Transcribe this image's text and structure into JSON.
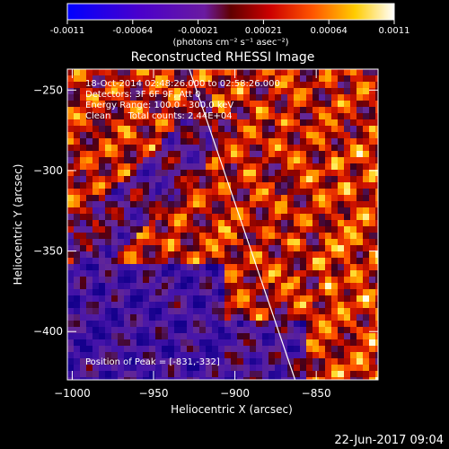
{
  "colorbar": {
    "ticks": [
      "-0.0011",
      "-0.00064",
      "-0.00021",
      "0.00021",
      "0.00064",
      "0.0011"
    ],
    "unit": "(photons cm⁻² s⁻¹ asec⁻²)"
  },
  "chart_data": {
    "type": "heatmap",
    "title": "Reconstructed RHESSI Image",
    "xlabel": "Heliocentric X (arcsec)",
    "ylabel": "Heliocentric Y (arcsec)",
    "xlim": [
      -1003,
      -812
    ],
    "ylim": [
      -430,
      -237
    ],
    "xticks": [
      -1000,
      -950,
      -900,
      -850
    ],
    "yticks": [
      -250,
      -300,
      -350,
      -400
    ],
    "color_range": [
      -0.0011,
      0.0011
    ],
    "limb_line": {
      "x": [
        -928,
        -863
      ],
      "y": [
        -237,
        -430
      ]
    },
    "peak": {
      "x": -831,
      "y": -332
    }
  },
  "annotations": [
    "18-Oct-2014 02:48:26.000 to 02:58:26.000",
    "Detectors: 3F 6F 9F, Att 0",
    "Energy Range: 100.0 - 300.0 keV",
    "Clean      Total counts: 2.44E+04"
  ],
  "peak_label": "Position of Peak = [-831,-332]",
  "footer": {
    "date": "22-Jun-2017 09:04"
  }
}
